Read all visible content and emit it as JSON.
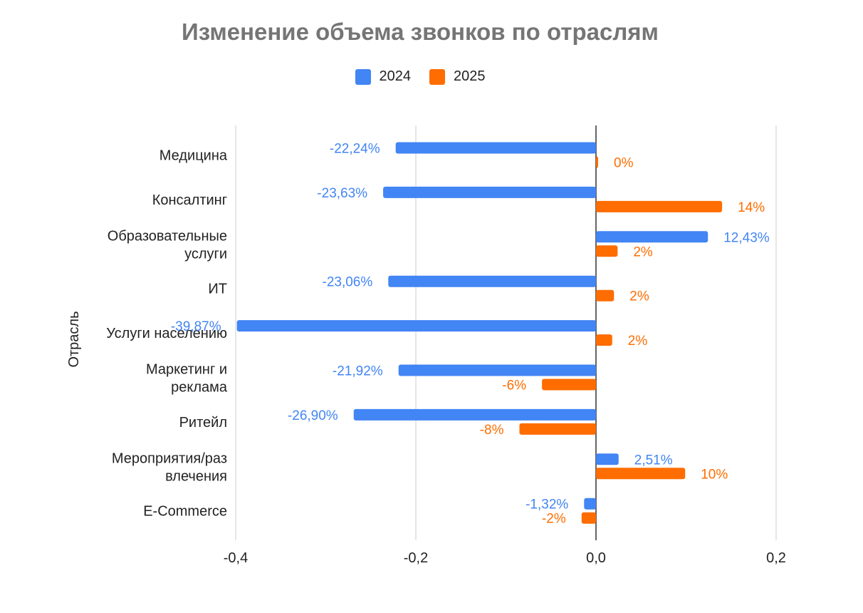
{
  "chart_data": {
    "type": "bar",
    "orientation": "horizontal",
    "title": "Изменение объема звонков по отраслям",
    "ylabel": "Отрасль",
    "xlabel": "",
    "xlim": [
      -0.4,
      0.2
    ],
    "xticks": [
      -0.4,
      -0.2,
      0.0,
      0.2
    ],
    "xtick_labels": [
      "-0,4",
      "-0,2",
      "0,0",
      "0,2"
    ],
    "grid": true,
    "legend_position": "top-center",
    "categories": [
      [
        "Медицина"
      ],
      [
        "Консалтинг"
      ],
      [
        "Образовательные",
        "услуги"
      ],
      [
        "ИТ"
      ],
      [
        "Услуги населению"
      ],
      [
        "Маркетинг и",
        "реклама"
      ],
      [
        "Ритейл"
      ],
      [
        "Мероприятия/раз",
        "влечения"
      ],
      [
        "E-Commerce"
      ]
    ],
    "series": [
      {
        "name": "2024",
        "color": "#4285f4",
        "values": [
          -0.2224,
          -0.2363,
          0.1243,
          -0.2306,
          -0.3987,
          -0.2192,
          -0.269,
          0.0251,
          -0.0132
        ],
        "labels": [
          "-22,24%",
          "-23,63%",
          "12,43%",
          "-23,06%",
          "-39,87%",
          "-21,92%",
          "-26,90%",
          "2,51%",
          "-1,32%"
        ]
      },
      {
        "name": "2025",
        "color": "#ff6d01",
        "values": [
          0.002,
          0.14,
          0.024,
          0.02,
          0.018,
          -0.06,
          -0.085,
          0.099,
          -0.016
        ],
        "labels": [
          "0%",
          "14%",
          "2%",
          "2%",
          "2%",
          "-6%",
          "-8%",
          "10%",
          "-2%"
        ]
      }
    ]
  }
}
